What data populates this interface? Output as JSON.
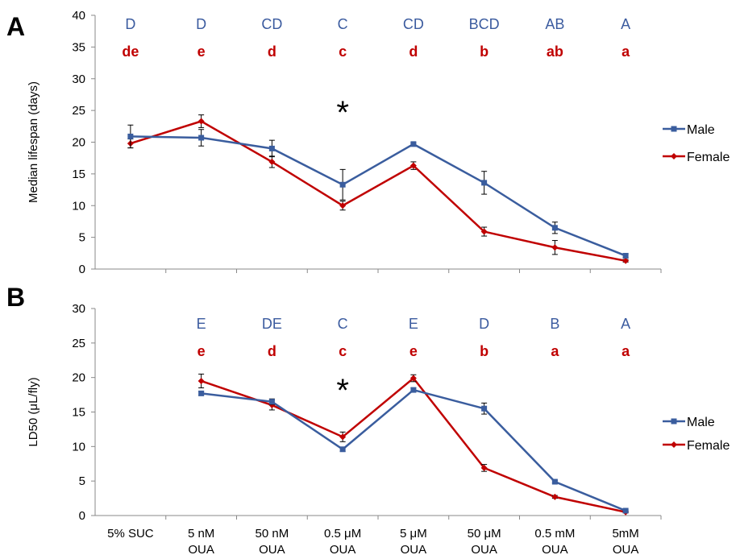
{
  "colors": {
    "male": "#3a5d9e",
    "female": "#c00000",
    "male_text": "#3b5b9f",
    "female_text": "#c00000",
    "axis": "#888888"
  },
  "x_labels": [
    {
      "line1": "5% SUC",
      "line2": ""
    },
    {
      "line1": "5 nM",
      "line2": "OUA"
    },
    {
      "line1": "50 nM",
      "line2": "OUA"
    },
    {
      "line1": "0.5 μM",
      "line2": "OUA"
    },
    {
      "line1": "5 μM",
      "line2": "OUA"
    },
    {
      "line1": "50 μM",
      "line2": "OUA"
    },
    {
      "line1": "0.5 mM",
      "line2": "OUA"
    },
    {
      "line1": "5mM",
      "line2": "OUA"
    }
  ],
  "chart_data": [
    {
      "type": "line",
      "panel_label": "A",
      "ylabel": "Median lifespan (days)",
      "ylim": [
        0,
        40
      ],
      "yticks": [
        0,
        5,
        10,
        15,
        20,
        25,
        30,
        35,
        40
      ],
      "categories": [
        "5% SUC",
        "5 nM OUA",
        "50 nM OUA",
        "0.5 μM OUA",
        "5 μM OUA",
        "50 μM OUA",
        "0.5 mM OUA",
        "5mM OUA"
      ],
      "series": [
        {
          "name": "Male",
          "marker": "square",
          "values": [
            20.9,
            20.7,
            19.0,
            13.3,
            19.7,
            13.6,
            6.5,
            2.1
          ],
          "errors": [
            1.8,
            1.3,
            1.3,
            2.4,
            0.2,
            1.8,
            0.9,
            0.3
          ]
        },
        {
          "name": "Female",
          "marker": "diamond",
          "values": [
            19.8,
            23.3,
            16.9,
            10.0,
            16.3,
            5.9,
            3.4,
            1.3
          ],
          "errors": [
            0.7,
            1.0,
            0.9,
            0.7,
            0.6,
            0.7,
            1.1,
            0.2
          ]
        }
      ],
      "letters_upper": [
        "D",
        "D",
        "CD",
        "C",
        "CD",
        "BCD",
        "AB",
        "A"
      ],
      "letters_lower": [
        "de",
        "e",
        "d",
        "c",
        "d",
        "b",
        "ab",
        "a"
      ],
      "star": {
        "text": "*",
        "category_index": 3
      },
      "legend": "right"
    },
    {
      "type": "line",
      "panel_label": "B",
      "ylabel": "LD50 (μL/fly)",
      "ylim": [
        0,
        30
      ],
      "yticks": [
        0,
        5,
        10,
        15,
        20,
        25,
        30
      ],
      "categories": [
        "5% SUC",
        "5 nM OUA",
        "50 nM OUA",
        "0.5 μM OUA",
        "5 μM OUA",
        "50 μM OUA",
        "0.5 mM OUA",
        "5mM OUA"
      ],
      "series": [
        {
          "name": "Male",
          "marker": "square",
          "values": [
            null,
            17.7,
            16.5,
            9.6,
            18.2,
            15.5,
            4.9,
            0.7
          ],
          "errors": [
            0,
            0.3,
            0.4,
            0.3,
            0.3,
            0.8,
            0.2,
            0.1
          ]
        },
        {
          "name": "Female",
          "marker": "diamond",
          "values": [
            null,
            19.5,
            16.0,
            11.4,
            19.9,
            6.9,
            2.7,
            0.5
          ],
          "errors": [
            0,
            1.0,
            0.7,
            0.7,
            0.5,
            0.5,
            0.2,
            0.1
          ]
        }
      ],
      "letters_upper": [
        "",
        "E",
        "DE",
        "C",
        "E",
        "D",
        "B",
        "A"
      ],
      "letters_lower": [
        "",
        "e",
        "d",
        "c",
        "e",
        "b",
        "a",
        "a"
      ],
      "star": {
        "text": "*",
        "category_index": 3
      },
      "legend": "right"
    }
  ]
}
